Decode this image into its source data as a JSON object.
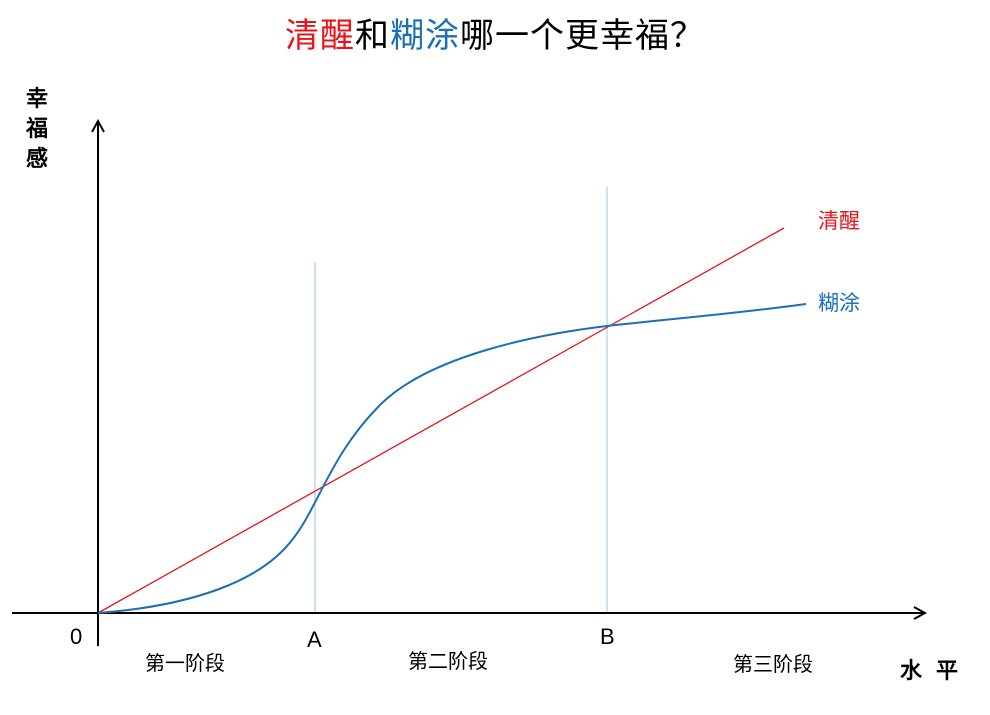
{
  "title": {
    "parts": [
      {
        "text": "清醒",
        "color": "#e8141c"
      },
      {
        "text": "和",
        "color": "#000000"
      },
      {
        "text": "糊涂",
        "color": "#1a6fb5"
      },
      {
        "text": "哪一个更幸福？",
        "color": "#000000"
      }
    ]
  },
  "axes": {
    "y_label": [
      "幸",
      "福",
      "感"
    ],
    "x_label": "水平",
    "origin_label": "0",
    "tick_a": "A",
    "tick_b": "B"
  },
  "phases": [
    "第一阶段",
    "第二阶段",
    "第三阶段"
  ],
  "series": {
    "clear": {
      "name": "清醒",
      "color": "#e8141c"
    },
    "muddled": {
      "name": "糊涂",
      "color": "#1a6fb5"
    }
  },
  "colors": {
    "axis": "#000000",
    "guide": "#9cc3dc"
  }
}
